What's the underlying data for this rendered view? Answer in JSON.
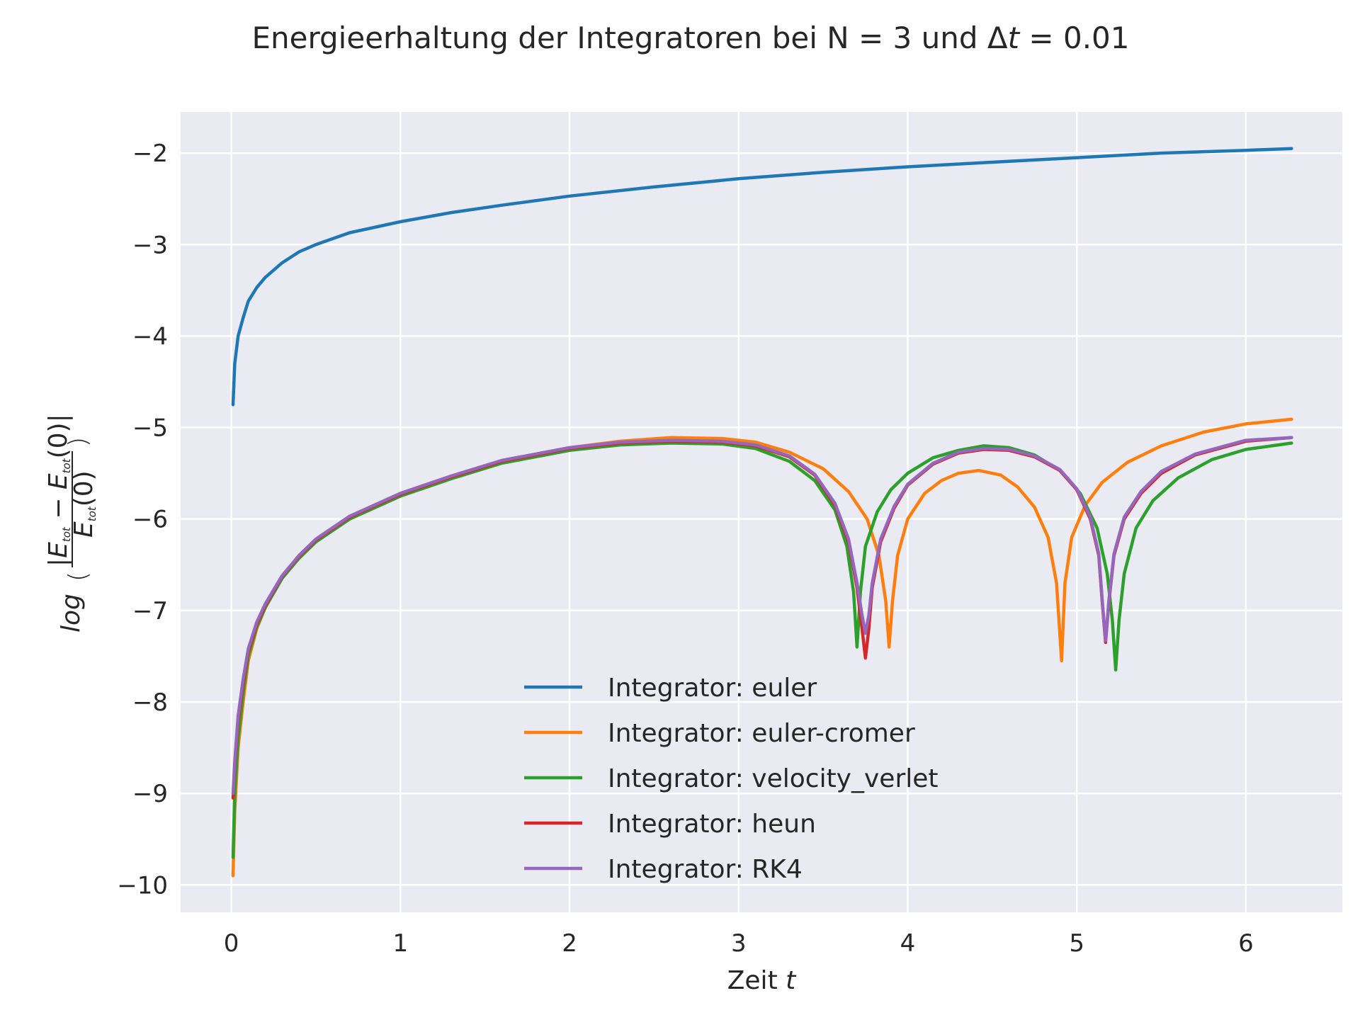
{
  "chart_data": {
    "type": "line",
    "title": "Energieerhaltung der Integratoren bei N = 3 und Δt = 0.01",
    "xlabel": "Zeit t",
    "ylabel": "log(|E_tot − E_tot(0)| / E_tot(0))",
    "xlim": [
      -0.3,
      6.57
    ],
    "ylim": [
      -10.3,
      -1.55
    ],
    "xticks": [
      0,
      1,
      2,
      3,
      4,
      5,
      6
    ],
    "xtick_labels": [
      "0",
      "1",
      "2",
      "3",
      "4",
      "5",
      "6"
    ],
    "yticks": [
      -2,
      -3,
      -4,
      -5,
      -6,
      -7,
      -8,
      -9,
      -10
    ],
    "ytick_labels": [
      "−2",
      "−3",
      "−4",
      "−5",
      "−6",
      "−7",
      "−8",
      "−9",
      "−10"
    ],
    "grid": true,
    "background": "#eaeaf2",
    "legend_position": "lower-center",
    "series": [
      {
        "name": "Integrator: euler",
        "color": "#1f77b4",
        "points": [
          [
            0.01,
            -4.75
          ],
          [
            0.02,
            -4.3
          ],
          [
            0.04,
            -4.0
          ],
          [
            0.07,
            -3.8
          ],
          [
            0.1,
            -3.62
          ],
          [
            0.15,
            -3.47
          ],
          [
            0.2,
            -3.36
          ],
          [
            0.3,
            -3.2
          ],
          [
            0.4,
            -3.08
          ],
          [
            0.5,
            -3.0
          ],
          [
            0.7,
            -2.87
          ],
          [
            1.0,
            -2.75
          ],
          [
            1.3,
            -2.65
          ],
          [
            1.6,
            -2.57
          ],
          [
            2.0,
            -2.47
          ],
          [
            2.5,
            -2.37
          ],
          [
            3.0,
            -2.28
          ],
          [
            3.5,
            -2.21
          ],
          [
            4.0,
            -2.15
          ],
          [
            4.5,
            -2.1
          ],
          [
            5.0,
            -2.05
          ],
          [
            5.5,
            -2.0
          ],
          [
            6.0,
            -1.97
          ],
          [
            6.27,
            -1.95
          ]
        ]
      },
      {
        "name": "Integrator: euler-cromer",
        "color": "#ff7f0e",
        "points": [
          [
            0.01,
            -9.9
          ],
          [
            0.02,
            -9.2
          ],
          [
            0.04,
            -8.5
          ],
          [
            0.07,
            -8.0
          ],
          [
            0.1,
            -7.55
          ],
          [
            0.15,
            -7.2
          ],
          [
            0.2,
            -6.97
          ],
          [
            0.3,
            -6.63
          ],
          [
            0.4,
            -6.4
          ],
          [
            0.5,
            -6.22
          ],
          [
            0.7,
            -5.97
          ],
          [
            1.0,
            -5.72
          ],
          [
            1.3,
            -5.53
          ],
          [
            1.6,
            -5.36
          ],
          [
            2.0,
            -5.22
          ],
          [
            2.3,
            -5.15
          ],
          [
            2.6,
            -5.11
          ],
          [
            2.9,
            -5.12
          ],
          [
            3.1,
            -5.16
          ],
          [
            3.3,
            -5.27
          ],
          [
            3.5,
            -5.45
          ],
          [
            3.65,
            -5.7
          ],
          [
            3.76,
            -6.0
          ],
          [
            3.83,
            -6.4
          ],
          [
            3.87,
            -6.9
          ],
          [
            3.89,
            -7.4
          ],
          [
            3.91,
            -6.9
          ],
          [
            3.94,
            -6.4
          ],
          [
            4.0,
            -6.0
          ],
          [
            4.1,
            -5.72
          ],
          [
            4.2,
            -5.58
          ],
          [
            4.3,
            -5.5
          ],
          [
            4.42,
            -5.47
          ],
          [
            4.55,
            -5.52
          ],
          [
            4.65,
            -5.65
          ],
          [
            4.75,
            -5.87
          ],
          [
            4.83,
            -6.2
          ],
          [
            4.88,
            -6.7
          ],
          [
            4.91,
            -7.55
          ],
          [
            4.93,
            -6.7
          ],
          [
            4.97,
            -6.2
          ],
          [
            5.05,
            -5.85
          ],
          [
            5.15,
            -5.6
          ],
          [
            5.3,
            -5.38
          ],
          [
            5.5,
            -5.2
          ],
          [
            5.75,
            -5.05
          ],
          [
            6.0,
            -4.96
          ],
          [
            6.27,
            -4.91
          ]
        ]
      },
      {
        "name": "Integrator: velocity_verlet",
        "color": "#2ca02c",
        "points": [
          [
            0.01,
            -9.7
          ],
          [
            0.02,
            -9.0
          ],
          [
            0.04,
            -8.4
          ],
          [
            0.07,
            -7.9
          ],
          [
            0.1,
            -7.5
          ],
          [
            0.15,
            -7.18
          ],
          [
            0.2,
            -6.97
          ],
          [
            0.3,
            -6.65
          ],
          [
            0.4,
            -6.43
          ],
          [
            0.5,
            -6.25
          ],
          [
            0.7,
            -6.0
          ],
          [
            1.0,
            -5.75
          ],
          [
            1.3,
            -5.56
          ],
          [
            1.6,
            -5.39
          ],
          [
            2.0,
            -5.25
          ],
          [
            2.3,
            -5.19
          ],
          [
            2.6,
            -5.17
          ],
          [
            2.9,
            -5.18
          ],
          [
            3.1,
            -5.23
          ],
          [
            3.3,
            -5.37
          ],
          [
            3.45,
            -5.58
          ],
          [
            3.57,
            -5.9
          ],
          [
            3.64,
            -6.3
          ],
          [
            3.68,
            -6.8
          ],
          [
            3.7,
            -7.4
          ],
          [
            3.72,
            -6.8
          ],
          [
            3.75,
            -6.3
          ],
          [
            3.82,
            -5.92
          ],
          [
            3.9,
            -5.68
          ],
          [
            4.0,
            -5.5
          ],
          [
            4.15,
            -5.33
          ],
          [
            4.3,
            -5.25
          ],
          [
            4.45,
            -5.2
          ],
          [
            4.6,
            -5.22
          ],
          [
            4.75,
            -5.3
          ],
          [
            4.9,
            -5.47
          ],
          [
            5.02,
            -5.72
          ],
          [
            5.12,
            -6.1
          ],
          [
            5.18,
            -6.6
          ],
          [
            5.21,
            -7.1
          ],
          [
            5.23,
            -7.65
          ],
          [
            5.25,
            -7.1
          ],
          [
            5.28,
            -6.6
          ],
          [
            5.35,
            -6.1
          ],
          [
            5.45,
            -5.8
          ],
          [
            5.6,
            -5.55
          ],
          [
            5.8,
            -5.35
          ],
          [
            6.0,
            -5.24
          ],
          [
            6.27,
            -5.17
          ]
        ]
      },
      {
        "name": "Integrator: heun",
        "color": "#d62728",
        "points": [
          [
            0.01,
            -9.05
          ],
          [
            0.02,
            -8.7
          ],
          [
            0.04,
            -8.2
          ],
          [
            0.07,
            -7.8
          ],
          [
            0.1,
            -7.45
          ],
          [
            0.15,
            -7.15
          ],
          [
            0.2,
            -6.95
          ],
          [
            0.3,
            -6.63
          ],
          [
            0.4,
            -6.41
          ],
          [
            0.5,
            -6.23
          ],
          [
            0.7,
            -5.98
          ],
          [
            1.0,
            -5.73
          ],
          [
            1.3,
            -5.54
          ],
          [
            1.6,
            -5.37
          ],
          [
            2.0,
            -5.23
          ],
          [
            2.3,
            -5.17
          ],
          [
            2.6,
            -5.15
          ],
          [
            2.9,
            -5.16
          ],
          [
            3.1,
            -5.2
          ],
          [
            3.3,
            -5.32
          ],
          [
            3.45,
            -5.52
          ],
          [
            3.57,
            -5.85
          ],
          [
            3.65,
            -6.25
          ],
          [
            3.7,
            -6.75
          ],
          [
            3.73,
            -7.2
          ],
          [
            3.75,
            -7.52
          ],
          [
            3.77,
            -7.2
          ],
          [
            3.79,
            -6.75
          ],
          [
            3.84,
            -6.25
          ],
          [
            3.92,
            -5.88
          ],
          [
            4.0,
            -5.63
          ],
          [
            4.15,
            -5.4
          ],
          [
            4.3,
            -5.28
          ],
          [
            4.45,
            -5.24
          ],
          [
            4.6,
            -5.25
          ],
          [
            4.75,
            -5.32
          ],
          [
            4.9,
            -5.47
          ],
          [
            5.0,
            -5.68
          ],
          [
            5.08,
            -6.0
          ],
          [
            5.13,
            -6.4
          ],
          [
            5.15,
            -6.9
          ],
          [
            5.17,
            -7.35
          ],
          [
            5.19,
            -6.9
          ],
          [
            5.22,
            -6.4
          ],
          [
            5.28,
            -6.0
          ],
          [
            5.38,
            -5.72
          ],
          [
            5.5,
            -5.5
          ],
          [
            5.7,
            -5.3
          ],
          [
            6.0,
            -5.15
          ],
          [
            6.27,
            -5.11
          ]
        ]
      },
      {
        "name": "Integrator: RK4",
        "color": "#9467bd",
        "points": [
          [
            0.01,
            -9.0
          ],
          [
            0.02,
            -8.65
          ],
          [
            0.04,
            -8.15
          ],
          [
            0.07,
            -7.75
          ],
          [
            0.1,
            -7.42
          ],
          [
            0.15,
            -7.13
          ],
          [
            0.2,
            -6.93
          ],
          [
            0.3,
            -6.62
          ],
          [
            0.4,
            -6.4
          ],
          [
            0.5,
            -6.22
          ],
          [
            0.7,
            -5.97
          ],
          [
            1.0,
            -5.72
          ],
          [
            1.3,
            -5.53
          ],
          [
            1.6,
            -5.36
          ],
          [
            2.0,
            -5.22
          ],
          [
            2.3,
            -5.16
          ],
          [
            2.6,
            -5.14
          ],
          [
            2.9,
            -5.15
          ],
          [
            3.1,
            -5.19
          ],
          [
            3.3,
            -5.31
          ],
          [
            3.45,
            -5.51
          ],
          [
            3.57,
            -5.83
          ],
          [
            3.65,
            -6.22
          ],
          [
            3.7,
            -6.7
          ],
          [
            3.73,
            -7.05
          ],
          [
            3.75,
            -7.25
          ],
          [
            3.77,
            -7.05
          ],
          [
            3.79,
            -6.7
          ],
          [
            3.84,
            -6.22
          ],
          [
            3.92,
            -5.86
          ],
          [
            4.0,
            -5.62
          ],
          [
            4.15,
            -5.39
          ],
          [
            4.3,
            -5.27
          ],
          [
            4.45,
            -5.23
          ],
          [
            4.6,
            -5.24
          ],
          [
            4.75,
            -5.31
          ],
          [
            4.9,
            -5.46
          ],
          [
            5.0,
            -5.67
          ],
          [
            5.08,
            -5.98
          ],
          [
            5.13,
            -6.38
          ],
          [
            5.15,
            -6.88
          ],
          [
            5.17,
            -7.33
          ],
          [
            5.19,
            -6.88
          ],
          [
            5.22,
            -6.38
          ],
          [
            5.28,
            -5.98
          ],
          [
            5.38,
            -5.7
          ],
          [
            5.5,
            -5.48
          ],
          [
            5.7,
            -5.29
          ],
          [
            6.0,
            -5.14
          ],
          [
            6.27,
            -5.11
          ]
        ]
      }
    ]
  }
}
